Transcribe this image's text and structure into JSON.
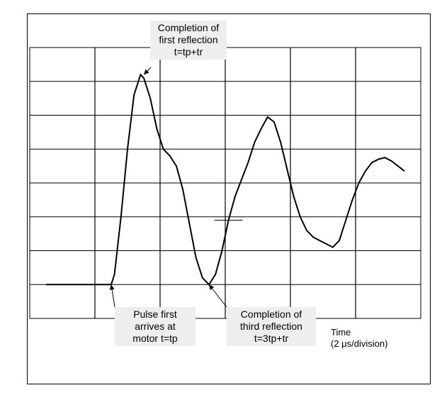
{
  "chart_data": {
    "type": "line",
    "xlabel": "Time",
    "xunit": "(2 μs/division)",
    "grid": true,
    "x_divisions": 12,
    "y_divisions": 8,
    "series": [
      {
        "x": [
          0,
          0.5,
          1,
          1.5,
          2,
          2.1,
          2.3,
          2.5,
          2.7,
          2.9,
          3.0,
          3.2,
          3.4,
          3.6,
          3.8,
          4.0,
          4.2,
          4.4,
          4.6,
          4.8,
          5.0,
          5.2,
          5.4,
          5.6,
          5.8,
          6.0,
          6.2,
          6.4,
          6.6,
          6.8,
          7.0,
          7.2,
          7.4,
          7.6,
          7.8,
          8.0,
          8.2,
          8.4,
          8.6,
          8.8,
          9.0,
          9.2,
          9.4,
          9.6,
          9.8,
          10.0,
          10.2,
          10.4,
          10.6,
          10.8,
          11.0
        ],
        "y": [
          0.0,
          0.0,
          0.0,
          0.0,
          0.0,
          0.3,
          2.0,
          4.0,
          5.6,
          6.2,
          6.1,
          5.5,
          4.6,
          4.0,
          3.8,
          3.5,
          2.8,
          1.8,
          0.8,
          0.2,
          0.0,
          0.3,
          1.0,
          1.9,
          2.6,
          3.1,
          3.6,
          4.2,
          4.6,
          4.95,
          4.8,
          4.2,
          3.4,
          2.6,
          2.0,
          1.6,
          1.4,
          1.3,
          1.2,
          1.1,
          1.3,
          1.9,
          2.5,
          3.0,
          3.35,
          3.6,
          3.7,
          3.75,
          3.65,
          3.5,
          3.35
        ]
      }
    ],
    "annotations": [
      {
        "lines": [
          "Completion of",
          "first reflection",
          "t=tp+tr"
        ],
        "x": 3.0,
        "y": 6.2
      },
      {
        "lines": [
          "Pulse first",
          "arrives at",
          "motor t=tp"
        ],
        "x": 2.0,
        "y": 0.0
      },
      {
        "lines": [
          "Completion of",
          "third reflection",
          "t=3tp+tr"
        ],
        "x": 5.0,
        "y": 0.0
      }
    ]
  }
}
